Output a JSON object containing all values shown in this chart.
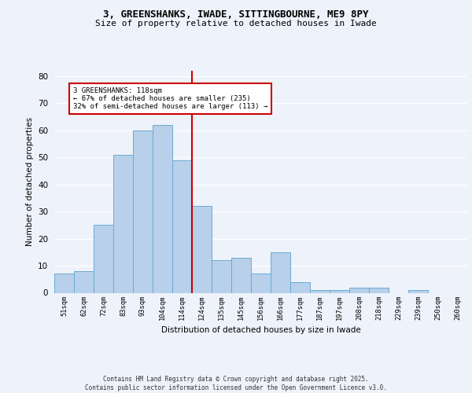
{
  "title1": "3, GREENSHANKS, IWADE, SITTINGBOURNE, ME9 8PY",
  "title2": "Size of property relative to detached houses in Iwade",
  "xlabel": "Distribution of detached houses by size in Iwade",
  "ylabel": "Number of detached properties",
  "categories": [
    "51sqm",
    "62sqm",
    "72sqm",
    "83sqm",
    "93sqm",
    "104sqm",
    "114sqm",
    "124sqm",
    "135sqm",
    "145sqm",
    "156sqm",
    "166sqm",
    "177sqm",
    "187sqm",
    "197sqm",
    "208sqm",
    "218sqm",
    "229sqm",
    "239sqm",
    "250sqm",
    "260sqm"
  ],
  "values": [
    7,
    8,
    25,
    51,
    60,
    62,
    49,
    32,
    12,
    13,
    7,
    15,
    4,
    1,
    1,
    2,
    2,
    0,
    1,
    0,
    0
  ],
  "bar_color": "#b8d0ea",
  "bar_edge_color": "#6aaad4",
  "vline_x_index": 6,
  "vline_color": "#cc0000",
  "annotation_text": "3 GREENSHANKS: 118sqm\n← 67% of detached houses are smaller (235)\n32% of semi-detached houses are larger (113) →",
  "annotation_box_edge_color": "#cc0000",
  "ylim": [
    0,
    82
  ],
  "yticks": [
    0,
    10,
    20,
    30,
    40,
    50,
    60,
    70,
    80
  ],
  "background_color": "#eef2fa",
  "footer_text": "Contains HM Land Registry data © Crown copyright and database right 2025.\nContains public sector information licensed under the Open Government Licence v3.0.",
  "grid_color": "#ffffff"
}
